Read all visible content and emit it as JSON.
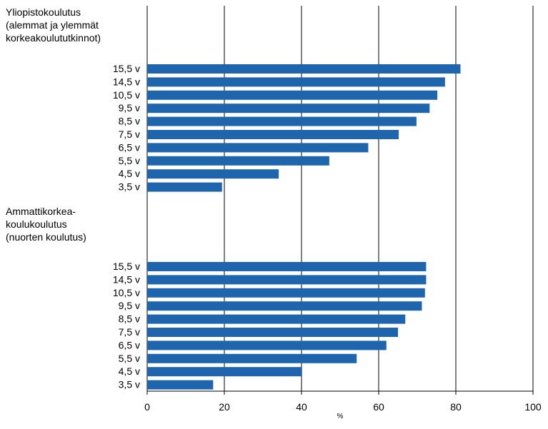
{
  "chart_data": {
    "type": "bar",
    "orientation": "horizontal",
    "xlabel": "%",
    "xlim": [
      0,
      100
    ],
    "xticks": [
      0,
      20,
      40,
      60,
      80,
      100
    ],
    "grid": "vertical",
    "bar_color": "#1F65AD",
    "groups": [
      {
        "label": "Yliopistokoulutus\n(alemmat ja ylemmät\nkorkeakoulututkinnot)",
        "categories": [
          "15,5 v",
          "14,5 v",
          "10,5 v",
          "9,5 v",
          "8,5 v",
          "7,5 v",
          "6,5 v",
          "5,5 v",
          "4,5 v",
          "3,5 v"
        ],
        "values": [
          81.2,
          77.2,
          75.2,
          73.2,
          69.8,
          65.2,
          57.3,
          47.2,
          34.1,
          19.4
        ]
      },
      {
        "label": "Ammattikorkea-\nkoulukoulutus\n(nuorten koulutus)",
        "categories": [
          "15,5 v",
          "14,5 v",
          "10,5 v",
          "9,5 v",
          "8,5 v",
          "7,5 v",
          "6,5 v",
          "5,5 v",
          "4,5 v",
          "3,5 v"
        ],
        "values": [
          72.3,
          72.3,
          72.0,
          71.2,
          66.9,
          65.0,
          62.0,
          54.3,
          40.0,
          17.1
        ]
      }
    ]
  }
}
